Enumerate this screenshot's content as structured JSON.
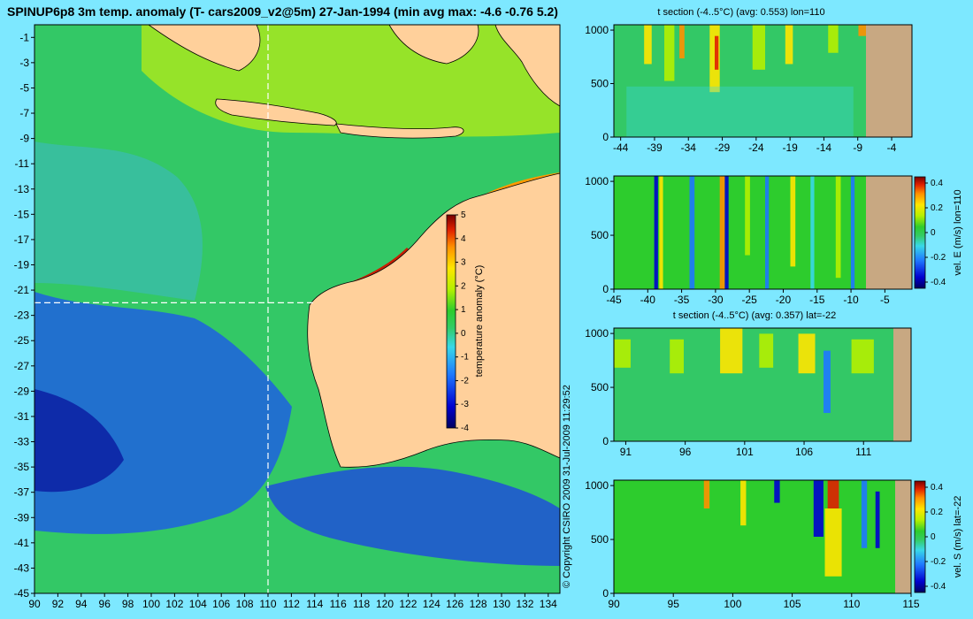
{
  "title": "SPINUP6p8 3m temp. anomaly (T- cars2009_v2@5m) 27-Jan-1994 (min avg max: -4.6 -0.76 5.2)",
  "copyright": "© Copyright CSIRO 2009   31-Jul-2009 11:29:52",
  "colors": {
    "background": "#7DE8FF",
    "land": "#FFD09B",
    "section_land": "#C8A882"
  },
  "chart_data": [
    {
      "id": "map",
      "type": "heatmap",
      "title": "SPINUP6p8 3m temp. anomaly (T- cars2009_v2@5m) 27-Jan-1994 (min avg max: -4.6 -0.76 5.2)",
      "xticks": [
        "90",
        "92",
        "94",
        "96",
        "98",
        "100",
        "102",
        "104",
        "106",
        "108",
        "110",
        "112",
        "114",
        "116",
        "118",
        "120",
        "122",
        "124",
        "126",
        "128",
        "130",
        "132",
        "134"
      ],
      "yticks": [
        "-1",
        "-3",
        "-5",
        "-7",
        "-9",
        "-11",
        "-13",
        "-15",
        "-17",
        "-19",
        "-21",
        "-23",
        "-25",
        "-27",
        "-29",
        "-31",
        "-33",
        "-35",
        "-37",
        "-39",
        "-41",
        "-43",
        "-45"
      ],
      "xlim": [
        90,
        135
      ],
      "ylim": [
        -45,
        0
      ],
      "section_lon": 110,
      "section_lat": -22,
      "colorbar": {
        "label": "temperature anomaly (°C)",
        "ticks": [
          "5",
          "4",
          "3",
          "2",
          "1",
          "0",
          "-1",
          "-2",
          "-3",
          "-4"
        ],
        "range": [
          -4,
          5
        ]
      }
    },
    {
      "id": "t-section-lon",
      "type": "heatmap",
      "title": "t section (-4..5°C) (avg: 0.553) lon=110",
      "xticks": [
        "-44",
        "-39",
        "-34",
        "-29",
        "-24",
        "-19",
        "-14",
        "-9",
        "-4"
      ],
      "yticks": [
        "0",
        "500",
        "1000"
      ],
      "xlim": [
        -45,
        -1
      ],
      "ylim": [
        1050,
        0
      ]
    },
    {
      "id": "vel-e-section-lon",
      "type": "heatmap",
      "title": "",
      "xticks": [
        "-45",
        "-40",
        "-35",
        "-30",
        "-25",
        "-20",
        "-15",
        "-10",
        "-5"
      ],
      "yticks": [
        "0",
        "500",
        "1000"
      ],
      "xlim": [
        -45,
        -1
      ],
      "ylim": [
        1050,
        0
      ],
      "colorbar": {
        "label": "vel. E (m/s) lon=110",
        "ticks": [
          "0.4",
          "0.2",
          "0",
          "-0.2",
          "-0.4"
        ],
        "range": [
          -0.45,
          0.45
        ]
      }
    },
    {
      "id": "t-section-lat",
      "type": "heatmap",
      "title": "t section (-4..5°C) (avg: 0.357) lat=-22",
      "xticks": [
        "91",
        "96",
        "101",
        "106",
        "111"
      ],
      "yticks": [
        "0",
        "500",
        "1000"
      ],
      "xlim": [
        90,
        115
      ],
      "ylim": [
        1050,
        0
      ]
    },
    {
      "id": "vel-s-section-lat",
      "type": "heatmap",
      "title": "",
      "xticks": [
        "90",
        "95",
        "100",
        "105",
        "110",
        "115"
      ],
      "yticks": [
        "0",
        "500",
        "1000"
      ],
      "xlim": [
        90,
        115
      ],
      "ylim": [
        1050,
        0
      ],
      "colorbar": {
        "label": "vel. S (m/s) lat=-22",
        "ticks": [
          "0.4",
          "0.2",
          "0",
          "-0.2",
          "-0.4"
        ],
        "range": [
          -0.45,
          0.45
        ]
      }
    }
  ]
}
